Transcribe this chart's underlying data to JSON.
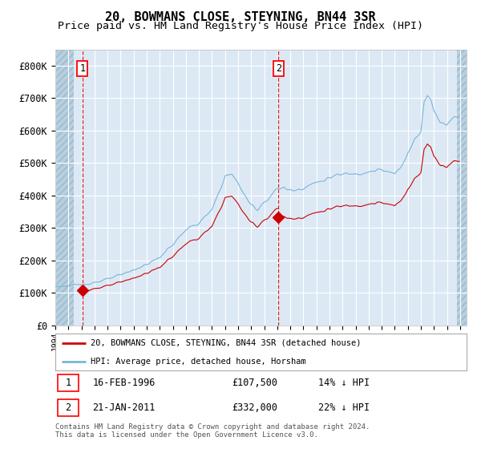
{
  "title": "20, BOWMANS CLOSE, STEYNING, BN44 3SR",
  "subtitle": "Price paid vs. HM Land Registry's House Price Index (HPI)",
  "title_fontsize": 11,
  "subtitle_fontsize": 9.5,
  "background_color": "#ffffff",
  "plot_bg_color": "#dce9f5",
  "grid_color": "#ffffff",
  "ylim": [
    0,
    850000
  ],
  "yticks": [
    0,
    100000,
    200000,
    300000,
    400000,
    500000,
    600000,
    700000,
    800000
  ],
  "ytick_labels": [
    "£0",
    "£100K",
    "£200K",
    "£300K",
    "£400K",
    "£500K",
    "£600K",
    "£700K",
    "£800K"
  ],
  "sale1_year_idx": 26,
  "sale1_price": 107500,
  "sale2_year_idx": 205,
  "sale2_price": 332000,
  "hpi_color": "#7ab5d8",
  "property_color": "#cc0000",
  "hatch_color": "#b8cfe0",
  "xlim_start_year": 1994.0,
  "xlim_end_year": 2025.5,
  "hatch_left_end_year": 1995.42,
  "hatch_right_start_year": 2024.75,
  "footer": "Contains HM Land Registry data © Crown copyright and database right 2024.\nThis data is licensed under the Open Government Licence v3.0."
}
